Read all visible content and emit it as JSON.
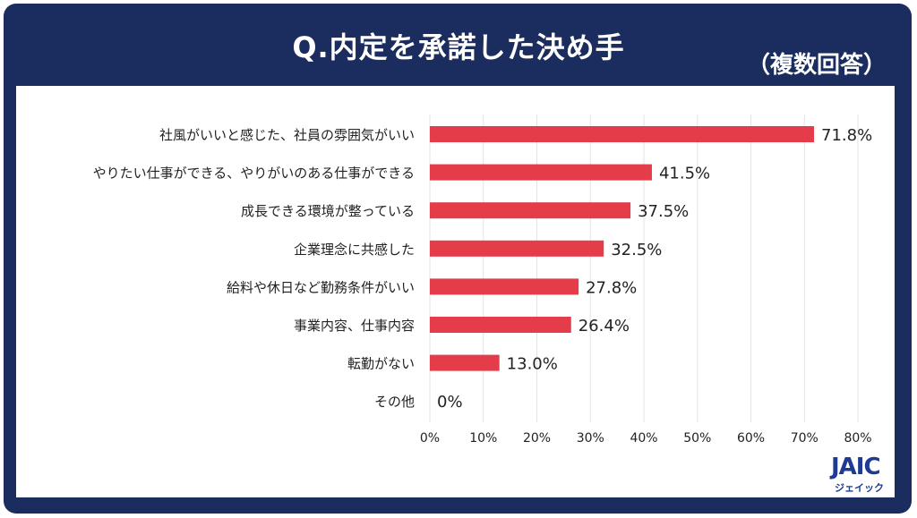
{
  "chart_data": {
    "type": "bar",
    "orientation": "horizontal",
    "title": "Q.内定を承諾した決め手",
    "subtitle": "（複数回答）",
    "categories": [
      "社風がいいと感じた、社員の雰囲気がいい",
      "やりたい仕事ができる、やりがいのある仕事ができる",
      "成長できる環境が整っている",
      "企業理念に共感した",
      "給料や休日など勤務条件がいい",
      "事業内容、仕事内容",
      "転勤がない",
      "その他"
    ],
    "values": [
      71.8,
      41.5,
      37.5,
      32.5,
      27.8,
      26.4,
      13.0,
      0
    ],
    "value_labels": [
      "71.8%",
      "41.5%",
      "37.5%",
      "32.5%",
      "27.8%",
      "26.4%",
      "13.0%",
      "0%"
    ],
    "xlim": [
      0,
      80
    ],
    "x_ticks": [
      "0%",
      "10%",
      "20%",
      "30%",
      "40%",
      "50%",
      "60%",
      "70%",
      "80%"
    ],
    "grid": true,
    "bar_color": "#e53c4a"
  },
  "logo": {
    "mark": "JAIC",
    "text": "ジェイック"
  },
  "colors": {
    "frame": "#1b2c5e",
    "bar": "#e53c4a",
    "grid": "#e3e3e3"
  }
}
